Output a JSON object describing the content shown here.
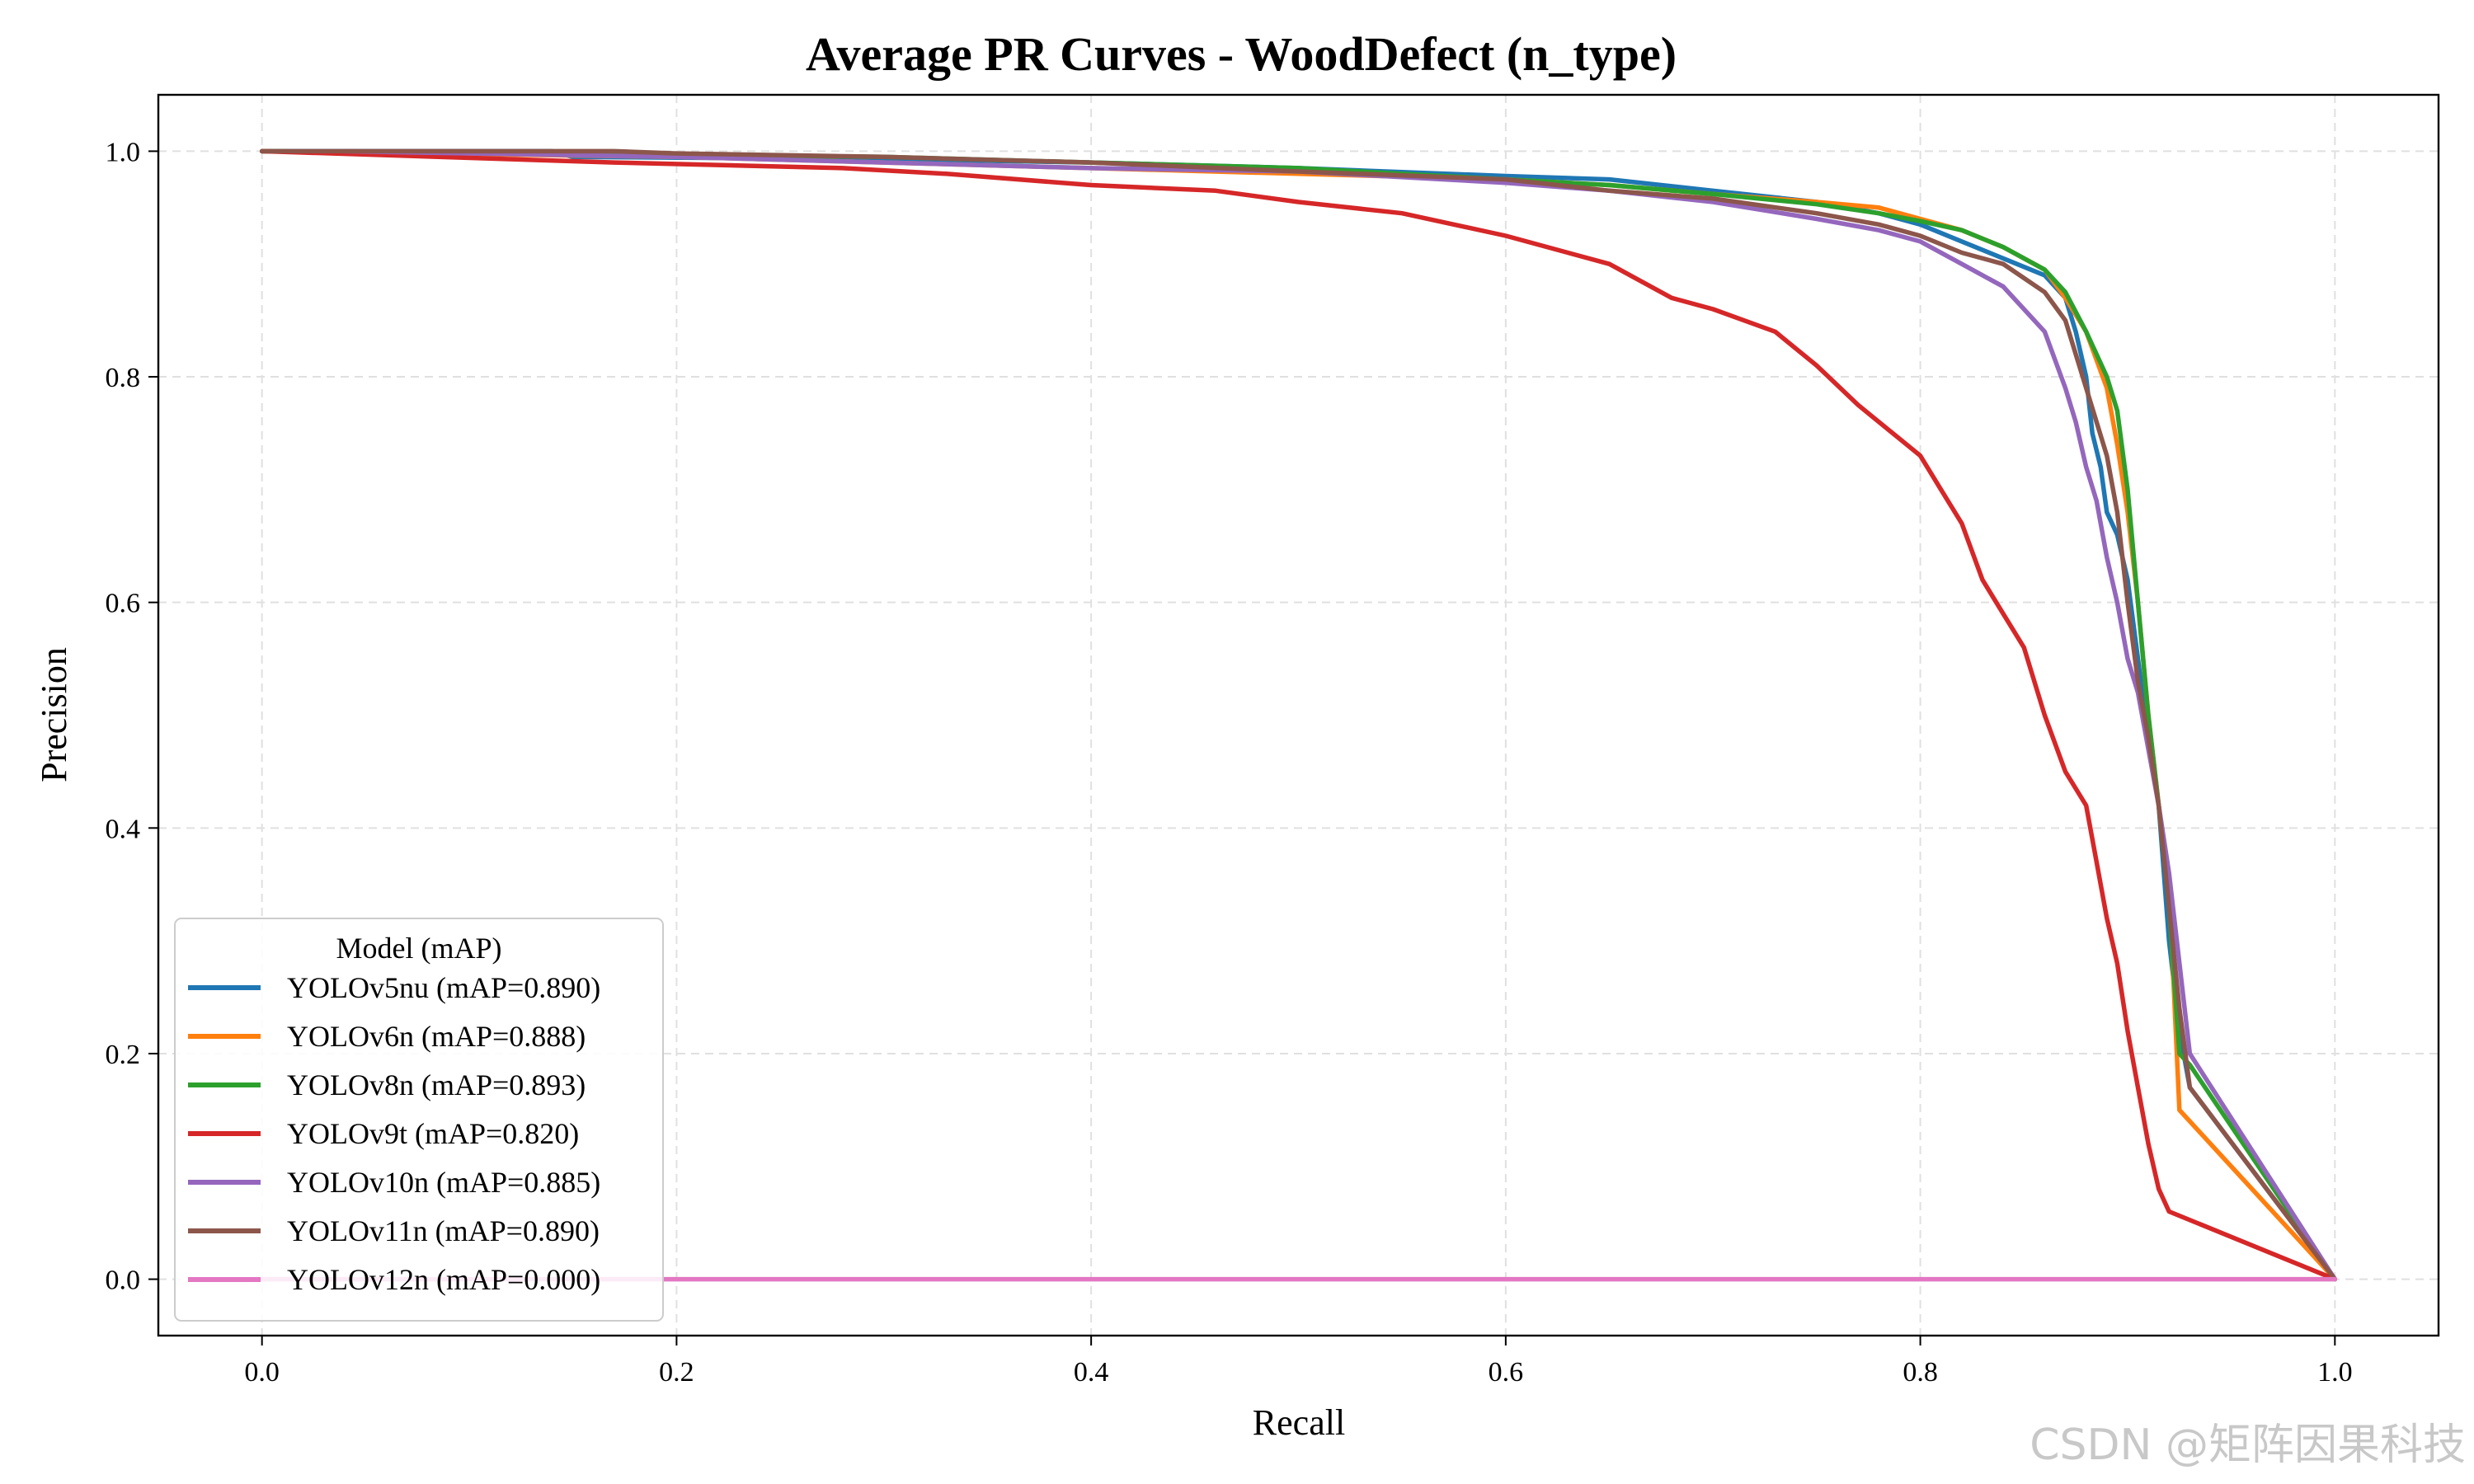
{
  "chart_data": {
    "type": "line",
    "title": "Average PR Curves - WoodDefect (n_type)",
    "xlabel": "Recall",
    "ylabel": "Precision",
    "xlim": [
      -0.05,
      1.05
    ],
    "ylim": [
      -0.05,
      1.05
    ],
    "xticks": [
      "0.0",
      "0.2",
      "0.4",
      "0.6",
      "0.8",
      "1.0"
    ],
    "yticks": [
      "0.0",
      "0.2",
      "0.4",
      "0.6",
      "0.8",
      "1.0"
    ],
    "xtick_values": [
      0,
      0.2,
      0.4,
      0.6,
      0.8,
      1.0
    ],
    "ytick_values": [
      0,
      0.2,
      0.4,
      0.6,
      0.8,
      1.0
    ],
    "grid": true,
    "legend": {
      "title": "Model (mAP)",
      "placement": "lower-left"
    },
    "series": [
      {
        "name": "YOLOv5nu (mAP=0.890)",
        "color": "#1f77b4",
        "points": [
          [
            0,
            1.0
          ],
          [
            0.14,
            1.0
          ],
          [
            0.15,
            0.995
          ],
          [
            0.3,
            0.993
          ],
          [
            0.4,
            0.99
          ],
          [
            0.5,
            0.985
          ],
          [
            0.6,
            0.978
          ],
          [
            0.65,
            0.975
          ],
          [
            0.7,
            0.965
          ],
          [
            0.75,
            0.955
          ],
          [
            0.78,
            0.945
          ],
          [
            0.8,
            0.935
          ],
          [
            0.82,
            0.92
          ],
          [
            0.84,
            0.905
          ],
          [
            0.86,
            0.89
          ],
          [
            0.87,
            0.87
          ],
          [
            0.875,
            0.84
          ],
          [
            0.88,
            0.8
          ],
          [
            0.883,
            0.75
          ],
          [
            0.887,
            0.72
          ],
          [
            0.89,
            0.68
          ],
          [
            0.895,
            0.66
          ],
          [
            0.9,
            0.62
          ],
          [
            0.905,
            0.55
          ],
          [
            0.91,
            0.48
          ],
          [
            0.915,
            0.42
          ],
          [
            0.92,
            0.3
          ],
          [
            0.925,
            0.22
          ],
          [
            0.93,
            0.17
          ],
          [
            1.0,
            0.0
          ]
        ]
      },
      {
        "name": "YOLOv6n (mAP=0.888)",
        "color": "#ff7f0e",
        "points": [
          [
            0,
            1.0
          ],
          [
            0.2,
            0.995
          ],
          [
            0.3,
            0.99
          ],
          [
            0.4,
            0.985
          ],
          [
            0.5,
            0.98
          ],
          [
            0.6,
            0.975
          ],
          [
            0.65,
            0.97
          ],
          [
            0.7,
            0.962
          ],
          [
            0.75,
            0.955
          ],
          [
            0.78,
            0.95
          ],
          [
            0.8,
            0.94
          ],
          [
            0.82,
            0.93
          ],
          [
            0.84,
            0.915
          ],
          [
            0.86,
            0.895
          ],
          [
            0.87,
            0.87
          ],
          [
            0.88,
            0.84
          ],
          [
            0.89,
            0.79
          ],
          [
            0.895,
            0.74
          ],
          [
            0.9,
            0.68
          ],
          [
            0.905,
            0.6
          ],
          [
            0.91,
            0.5
          ],
          [
            0.915,
            0.42
          ],
          [
            0.92,
            0.35
          ],
          [
            0.925,
            0.15
          ],
          [
            1.0,
            0.0
          ]
        ]
      },
      {
        "name": "YOLOv8n (mAP=0.893)",
        "color": "#2ca02c",
        "points": [
          [
            0,
            1.0
          ],
          [
            0.3,
            0.995
          ],
          [
            0.4,
            0.99
          ],
          [
            0.5,
            0.985
          ],
          [
            0.6,
            0.975
          ],
          [
            0.65,
            0.97
          ],
          [
            0.7,
            0.962
          ],
          [
            0.75,
            0.953
          ],
          [
            0.78,
            0.945
          ],
          [
            0.8,
            0.938
          ],
          [
            0.82,
            0.93
          ],
          [
            0.84,
            0.915
          ],
          [
            0.86,
            0.895
          ],
          [
            0.87,
            0.875
          ],
          [
            0.88,
            0.84
          ],
          [
            0.89,
            0.8
          ],
          [
            0.895,
            0.77
          ],
          [
            0.9,
            0.7
          ],
          [
            0.905,
            0.6
          ],
          [
            0.91,
            0.5
          ],
          [
            0.915,
            0.42
          ],
          [
            0.92,
            0.33
          ],
          [
            0.925,
            0.2
          ],
          [
            0.93,
            0.19
          ],
          [
            1.0,
            0.0
          ]
        ]
      },
      {
        "name": "YOLOv9t (mAP=0.820)",
        "color": "#d62728",
        "points": [
          [
            0,
            1.0
          ],
          [
            0.17,
            0.99
          ],
          [
            0.28,
            0.985
          ],
          [
            0.33,
            0.98
          ],
          [
            0.4,
            0.97
          ],
          [
            0.46,
            0.965
          ],
          [
            0.5,
            0.955
          ],
          [
            0.55,
            0.945
          ],
          [
            0.6,
            0.925
          ],
          [
            0.65,
            0.9
          ],
          [
            0.68,
            0.87
          ],
          [
            0.7,
            0.86
          ],
          [
            0.73,
            0.84
          ],
          [
            0.75,
            0.81
          ],
          [
            0.77,
            0.775
          ],
          [
            0.79,
            0.745
          ],
          [
            0.8,
            0.73
          ],
          [
            0.81,
            0.7
          ],
          [
            0.82,
            0.67
          ],
          [
            0.83,
            0.62
          ],
          [
            0.84,
            0.59
          ],
          [
            0.85,
            0.56
          ],
          [
            0.86,
            0.5
          ],
          [
            0.87,
            0.45
          ],
          [
            0.88,
            0.42
          ],
          [
            0.885,
            0.37
          ],
          [
            0.89,
            0.32
          ],
          [
            0.895,
            0.28
          ],
          [
            0.9,
            0.22
          ],
          [
            0.905,
            0.17
          ],
          [
            0.91,
            0.12
          ],
          [
            0.915,
            0.08
          ],
          [
            0.92,
            0.06
          ],
          [
            1.0,
            0.0
          ]
        ]
      },
      {
        "name": "YOLOv10n (mAP=0.885)",
        "color": "#9467bd",
        "points": [
          [
            0.04,
            1.0
          ],
          [
            0.2,
            0.995
          ],
          [
            0.3,
            0.99
          ],
          [
            0.4,
            0.985
          ],
          [
            0.5,
            0.982
          ],
          [
            0.6,
            0.972
          ],
          [
            0.65,
            0.965
          ],
          [
            0.7,
            0.955
          ],
          [
            0.75,
            0.94
          ],
          [
            0.78,
            0.93
          ],
          [
            0.8,
            0.92
          ],
          [
            0.82,
            0.9
          ],
          [
            0.84,
            0.88
          ],
          [
            0.86,
            0.84
          ],
          [
            0.87,
            0.79
          ],
          [
            0.875,
            0.76
          ],
          [
            0.88,
            0.72
          ],
          [
            0.885,
            0.69
          ],
          [
            0.89,
            0.64
          ],
          [
            0.895,
            0.6
          ],
          [
            0.9,
            0.55
          ],
          [
            0.905,
            0.52
          ],
          [
            0.91,
            0.47
          ],
          [
            0.915,
            0.42
          ],
          [
            0.92,
            0.36
          ],
          [
            0.925,
            0.28
          ],
          [
            0.93,
            0.2
          ],
          [
            1.0,
            0.0
          ]
        ]
      },
      {
        "name": "YOLOv11n (mAP=0.890)",
        "color": "#8c564b",
        "points": [
          [
            0,
            1.0
          ],
          [
            0.17,
            1.0
          ],
          [
            0.2,
            0.998
          ],
          [
            0.3,
            0.995
          ],
          [
            0.4,
            0.99
          ],
          [
            0.5,
            0.982
          ],
          [
            0.6,
            0.975
          ],
          [
            0.65,
            0.965
          ],
          [
            0.7,
            0.958
          ],
          [
            0.75,
            0.945
          ],
          [
            0.78,
            0.935
          ],
          [
            0.8,
            0.925
          ],
          [
            0.82,
            0.91
          ],
          [
            0.84,
            0.9
          ],
          [
            0.86,
            0.875
          ],
          [
            0.87,
            0.85
          ],
          [
            0.875,
            0.82
          ],
          [
            0.88,
            0.79
          ],
          [
            0.885,
            0.76
          ],
          [
            0.89,
            0.73
          ],
          [
            0.895,
            0.68
          ],
          [
            0.9,
            0.6
          ],
          [
            0.905,
            0.53
          ],
          [
            0.91,
            0.48
          ],
          [
            0.915,
            0.42
          ],
          [
            0.92,
            0.33
          ],
          [
            0.925,
            0.24
          ],
          [
            0.93,
            0.17
          ],
          [
            1.0,
            0.0
          ]
        ]
      },
      {
        "name": "YOLOv12n (mAP=0.000)",
        "color": "#e377c2",
        "points": [
          [
            0,
            0.0
          ],
          [
            1.0,
            0.0
          ]
        ]
      }
    ]
  },
  "watermark": "CSDN @矩阵因果科技"
}
